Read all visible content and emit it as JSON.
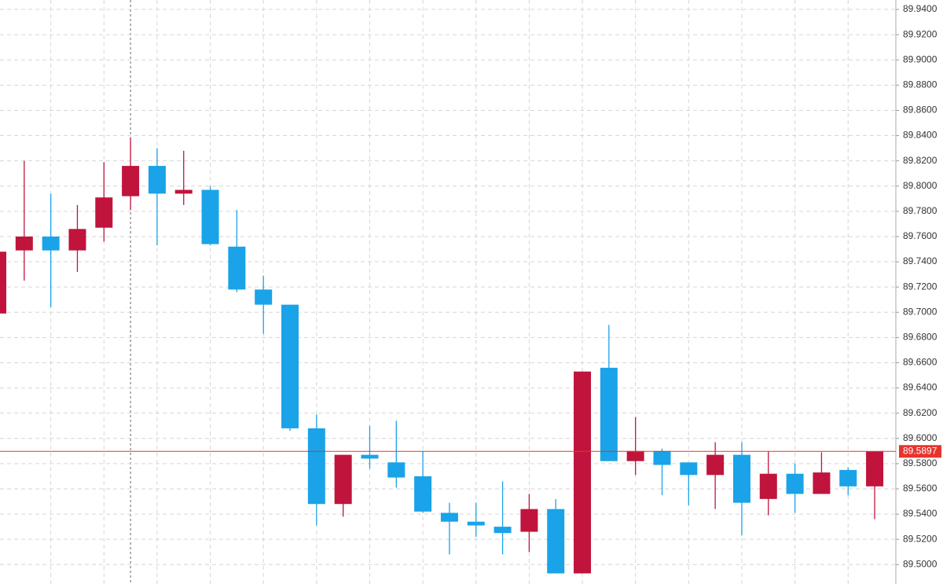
{
  "chart_data": {
    "type": "candlestick",
    "open": [
      89.699,
      89.749,
      89.76,
      89.749,
      89.767,
      89.792,
      89.816,
      89.794,
      89.797,
      89.752,
      89.718,
      89.706,
      89.608,
      89.548,
      89.587,
      89.581,
      89.57,
      89.541,
      89.534,
      89.53,
      89.526,
      89.544,
      89.493,
      89.656,
      89.582,
      89.59,
      89.581,
      89.571,
      89.587,
      89.552,
      89.572,
      89.556,
      89.575,
      89.562
    ],
    "high": [
      89.748,
      89.82,
      89.794,
      89.785,
      89.819,
      89.838,
      89.83,
      89.828,
      89.8,
      89.781,
      89.729,
      89.706,
      89.619,
      89.587,
      89.61,
      89.614,
      89.59,
      89.549,
      89.549,
      89.566,
      89.556,
      89.552,
      89.653,
      89.69,
      89.617,
      89.592,
      89.581,
      89.597,
      89.597,
      89.59,
      89.58,
      89.589,
      89.577,
      89.5897
    ],
    "low": [
      89.699,
      89.725,
      89.704,
      89.732,
      89.756,
      89.781,
      89.753,
      89.785,
      89.753,
      89.716,
      89.683,
      89.606,
      89.531,
      89.538,
      89.576,
      89.561,
      89.541,
      89.508,
      89.522,
      89.508,
      89.51,
      89.493,
      89.493,
      89.582,
      89.571,
      89.555,
      89.547,
      89.544,
      89.523,
      89.539,
      89.541,
      89.556,
      89.555,
      89.536
    ],
    "close": [
      89.748,
      89.76,
      89.749,
      89.766,
      89.791,
      89.816,
      89.794,
      89.797,
      89.754,
      89.718,
      89.706,
      89.608,
      89.548,
      89.587,
      89.584,
      89.569,
      89.542,
      89.534,
      89.531,
      89.525,
      89.544,
      89.493,
      89.653,
      89.582,
      89.59,
      89.579,
      89.571,
      89.587,
      89.549,
      89.572,
      89.556,
      89.573,
      89.562,
      89.5897
    ],
    "up_color": "#c0143c",
    "down_color": "#1aa3e8",
    "ylim": [
      89.4846,
      89.9475
    ],
    "yticks": [
      {
        "value": 89.5,
        "label": "89.5000"
      },
      {
        "value": 89.52,
        "label": "89.5200"
      },
      {
        "value": 89.54,
        "label": "89.5400"
      },
      {
        "value": 89.56,
        "label": "89.5600"
      },
      {
        "value": 89.58,
        "label": "89.5800"
      },
      {
        "value": 89.6,
        "label": "89.6000"
      },
      {
        "value": 89.62,
        "label": "89.6200"
      },
      {
        "value": 89.64,
        "label": "89.6400"
      },
      {
        "value": 89.66,
        "label": "89.6600"
      },
      {
        "value": 89.68,
        "label": "89.6800"
      },
      {
        "value": 89.7,
        "label": "89.7000"
      },
      {
        "value": 89.72,
        "label": "89.7200"
      },
      {
        "value": 89.74,
        "label": "89.7400"
      },
      {
        "value": 89.76,
        "label": "89.7600"
      },
      {
        "value": 89.78,
        "label": "89.7800"
      },
      {
        "value": 89.8,
        "label": "89.8000"
      },
      {
        "value": 89.82,
        "label": "89.8200"
      },
      {
        "value": 89.84,
        "label": "89.8400"
      },
      {
        "value": 89.86,
        "label": "89.8600"
      },
      {
        "value": 89.88,
        "label": "89.8800"
      },
      {
        "value": 89.9,
        "label": "89.9000"
      },
      {
        "value": 89.92,
        "label": "89.9200"
      },
      {
        "value": 89.94,
        "label": "89.9400"
      }
    ],
    "grid": true,
    "last_price": 89.5897,
    "last_price_color": "#e8332d"
  }
}
